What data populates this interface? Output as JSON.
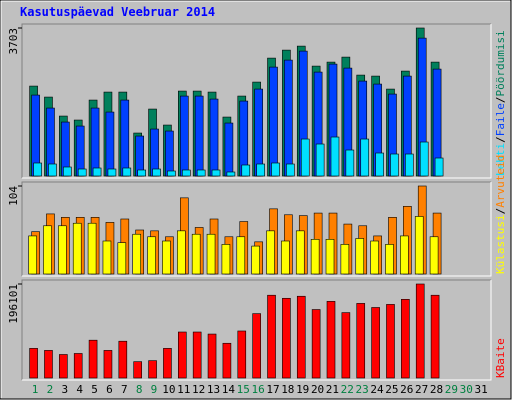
{
  "title": "Kasutuspäevad Veebruar 2014",
  "separator": "/",
  "chart_data": [
    {
      "type": "bar",
      "series": [
        {
          "name": "Pöördumisi",
          "color": "#00805c",
          "values": [
            2250,
            1975,
            1500,
            1400,
            1900,
            2100,
            2100,
            1075,
            1675,
            1275,
            2125,
            2125,
            2100,
            1475,
            2000,
            2350,
            2950,
            3150,
            3250,
            2750,
            2850,
            2975,
            2525,
            2500,
            2175,
            2625,
            3703,
            2850,
            null,
            null,
            null
          ]
        },
        {
          "name": "Faile",
          "color": "#0040ff",
          "values": [
            2025,
            1700,
            1350,
            1250,
            1700,
            1600,
            1900,
            1000,
            1175,
            1125,
            2000,
            2000,
            1925,
            1325,
            1875,
            2175,
            2725,
            2900,
            3125,
            2600,
            2800,
            2700,
            2375,
            2300,
            2050,
            2500,
            3450,
            2675,
            null,
            null,
            null
          ]
        },
        {
          "name": "Lehti",
          "color": "#00e0ff",
          "values": [
            325,
            300,
            225,
            175,
            200,
            175,
            200,
            150,
            175,
            125,
            150,
            150,
            150,
            100,
            275,
            300,
            325,
            300,
            925,
            800,
            975,
            650,
            925,
            575,
            550,
            550,
            850,
            450,
            null,
            null,
            null
          ]
        }
      ],
      "ylim": [
        0,
        3703
      ],
      "yticks": [
        3703
      ]
    },
    {
      "type": "bar",
      "series": [
        {
          "name": "Arvuteid",
          "color": "#ff8000",
          "values": [
            50,
            71,
            67,
            67,
            67,
            61,
            65,
            52,
            51,
            44,
            90,
            55,
            65,
            44,
            62,
            38,
            77,
            70,
            69,
            72,
            72,
            59,
            57,
            45,
            67,
            80,
            104,
            72,
            null,
            null,
            null
          ]
        },
        {
          "name": "Külastusi",
          "color": "#ffff00",
          "values": [
            45,
            57,
            57,
            60,
            60,
            39,
            37,
            47,
            44,
            39,
            51,
            47,
            47,
            35,
            44,
            33,
            51,
            39,
            51,
            41,
            41,
            35,
            42,
            39,
            35,
            45,
            68,
            44,
            null,
            null,
            null
          ]
        }
      ],
      "ylim": [
        0,
        104
      ],
      "yticks": [
        104
      ]
    },
    {
      "type": "bar",
      "categories": [
        "1",
        "2",
        "3",
        "4",
        "5",
        "6",
        "7",
        "8",
        "9",
        "10",
        "11",
        "12",
        "13",
        "14",
        "15",
        "16",
        "17",
        "18",
        "19",
        "20",
        "21",
        "22",
        "23",
        "24",
        "25",
        "26",
        "27",
        "28",
        "29",
        "30",
        "31"
      ],
      "category_colors": [
        "#008040",
        "#008040",
        "#000000",
        "#000000",
        "#000000",
        "#000000",
        "#000000",
        "#008040",
        "#008040",
        "#000000",
        "#000000",
        "#000000",
        "#000000",
        "#000000",
        "#008040",
        "#008040",
        "#000000",
        "#000000",
        "#000000",
        "#000000",
        "#000000",
        "#008040",
        "#008040",
        "#000000",
        "#000000",
        "#000000",
        "#000000",
        "#000000",
        "#008040",
        "#008040",
        "#000000"
      ],
      "series": [
        {
          "name": "KBaite",
          "color": "#ff0000",
          "values": [
            61828,
            57564,
            49036,
            51168,
            78884,
            57564,
            76752,
            34112,
            36244,
            61828,
            95940,
            95940,
            91676,
            72488,
            98072,
            134316,
            172692,
            166296,
            170560,
            142844,
            159900,
            136448,
            155636,
            147108,
            153504,
            164164,
            196101,
            172692,
            null,
            null,
            null
          ]
        }
      ],
      "ylim": [
        0,
        196101
      ],
      "yticks": [
        196101
      ]
    }
  ]
}
